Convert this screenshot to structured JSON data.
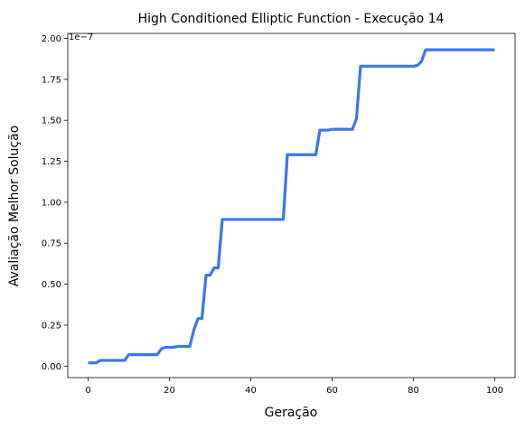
{
  "chart_data": {
    "type": "line",
    "title": "High Conditioned Elliptic Function - Execução 14",
    "xlabel": "Geração",
    "ylabel": "Avaliação Melhor Solução",
    "y_offset_label": "1e−7",
    "xlim": [
      -5,
      105
    ],
    "ylim": [
      -0.07,
      2.03
    ],
    "x_ticks": [
      0,
      20,
      40,
      60,
      80,
      100
    ],
    "x_tick_labels": [
      "0",
      "20",
      "40",
      "60",
      "80",
      "100"
    ],
    "y_ticks": [
      0.0,
      0.25,
      0.5,
      0.75,
      1.0,
      1.25,
      1.5,
      1.75,
      2.0
    ],
    "y_tick_labels": [
      "0.00",
      "0.25",
      "0.50",
      "0.75",
      "1.00",
      "1.25",
      "1.50",
      "1.75",
      "2.00"
    ],
    "grid": false,
    "series": [
      {
        "color": "#3b75f0",
        "x": [
          0,
          2,
          3,
          9,
          10,
          17,
          18,
          19,
          21,
          22,
          25,
          26,
          27,
          28,
          29,
          30,
          31,
          32,
          33,
          48,
          49,
          56,
          57,
          59,
          60,
          65,
          66,
          67,
          80,
          81,
          82,
          83,
          100
        ],
        "y": [
          0.02,
          0.02,
          0.035,
          0.035,
          0.07,
          0.07,
          0.105,
          0.115,
          0.115,
          0.12,
          0.12,
          0.22,
          0.29,
          0.29,
          0.555,
          0.555,
          0.6,
          0.6,
          0.895,
          0.895,
          1.29,
          1.29,
          1.44,
          1.44,
          1.445,
          1.445,
          1.51,
          1.83,
          1.83,
          1.835,
          1.86,
          1.93,
          1.93
        ]
      }
    ]
  }
}
